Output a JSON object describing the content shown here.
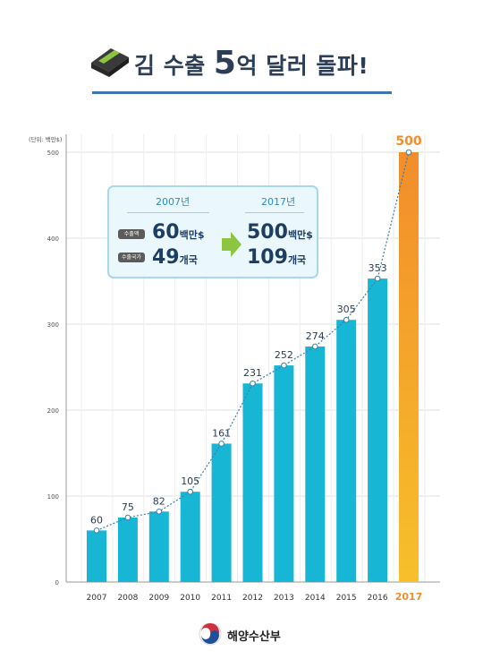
{
  "header": {
    "title_before": "김 수출 ",
    "title_number": "5",
    "title_after": "억 달러 돌파!"
  },
  "chart_data": {
    "type": "bar",
    "unit_label": "(단위: 백만$)",
    "categories": [
      "2007",
      "2008",
      "2009",
      "2010",
      "2011",
      "2012",
      "2013",
      "2014",
      "2015",
      "2016",
      "2017"
    ],
    "values": [
      60,
      75,
      82,
      105,
      161,
      231,
      252,
      274,
      305,
      353,
      500
    ],
    "data_labels": [
      "60",
      "75",
      "82",
      "105",
      "161",
      "231",
      "252",
      "274",
      "305",
      "353",
      "500"
    ],
    "y_ticks": [
      "0",
      "100",
      "200",
      "300",
      "400",
      "500"
    ],
    "ylim": [
      0,
      500
    ],
    "grid": true,
    "trend_line": "dotted",
    "colors": {
      "bar": "#17b6d5",
      "highlight_bar_top": "#f28d2b",
      "highlight_bar_bottom": "#f7c02b",
      "trend": "#3b7fa8",
      "grid": "#e2e2e2",
      "axis": "#9a9a9a"
    },
    "highlight_category": "2017"
  },
  "comparison": {
    "left_year": "2007년",
    "right_year": "2017년",
    "export_label": "수출액",
    "country_label": "수출국가",
    "left_export": "60",
    "left_export_unit": "백만$",
    "left_countries": "49",
    "left_countries_unit": "개국",
    "right_export": "500",
    "right_export_unit": "백만$",
    "right_countries": "109",
    "right_countries_unit": "개국",
    "arrow_icon": "right-arrow-icon"
  },
  "footer": {
    "ministry": "해양수산부",
    "emblem_icon": "taegeuk-emblem-icon"
  }
}
